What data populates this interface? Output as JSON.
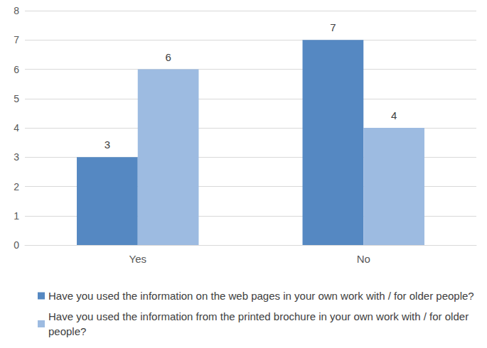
{
  "chart_data": {
    "type": "bar",
    "categories": [
      "Yes",
      "No"
    ],
    "series": [
      {
        "name": "Have you used the information on the web pages in your own work with / for older people?",
        "color": "#5588c2",
        "values": [
          3,
          7
        ]
      },
      {
        "name": "Have you used the information from the printed brochure in your own work with / for older people?",
        "color": "#9dbbe1",
        "values": [
          6,
          4
        ]
      }
    ],
    "ylim": [
      0,
      8
    ],
    "yticks": [
      0,
      1,
      2,
      3,
      4,
      5,
      6,
      7,
      8
    ],
    "grid": true,
    "data_labels": true,
    "legend": "bottom"
  }
}
